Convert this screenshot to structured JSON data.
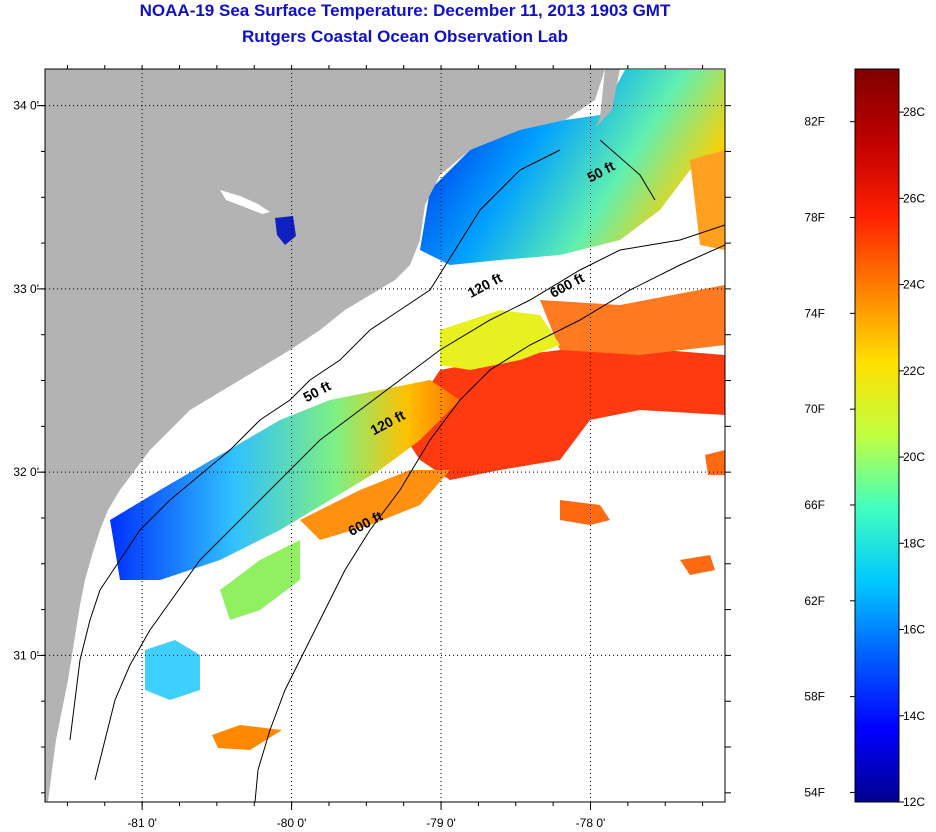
{
  "title": {
    "line1": "NOAA-19 Sea Surface Temperature:  December 11, 2013 1903 GMT",
    "line2": "Rutgers Coastal Ocean Observation Lab"
  },
  "map": {
    "lon_range": [
      -81.65,
      -77.1
    ],
    "lat_range": [
      30.2,
      34.2
    ],
    "lon_ticks": [
      {
        "value": -81,
        "label": "-81 0'"
      },
      {
        "value": -80,
        "label": "-80 0'"
      },
      {
        "value": -79,
        "label": "-79 0'"
      },
      {
        "value": -78,
        "label": "-78 0'"
      }
    ],
    "lat_ticks": [
      {
        "value": 34,
        "label": "34 0'"
      },
      {
        "value": 33,
        "label": "33 0'"
      },
      {
        "value": 32,
        "label": "32 0'"
      },
      {
        "value": 31,
        "label": "31 0'"
      }
    ],
    "contour_labels": [
      {
        "text": "50 ft",
        "lon": -78.0,
        "lat": 33.58
      },
      {
        "text": "120 ft",
        "lon": -78.8,
        "lat": 32.95
      },
      {
        "text": "600 ft",
        "lon": -78.25,
        "lat": 32.95
      },
      {
        "text": "50 ft",
        "lon": -79.9,
        "lat": 32.38
      },
      {
        "text": "120 ft",
        "lon": -79.45,
        "lat": 32.2
      },
      {
        "text": "600 ft",
        "lon": -79.6,
        "lat": 31.65
      }
    ],
    "colors": {
      "land": "#b3b3b3",
      "ocean_no_data": "#ffffff",
      "frame": "#000000"
    }
  },
  "colorbar": {
    "temp_min_c": 12,
    "temp_max_c": 29,
    "celsius_ticks": [
      {
        "value": 12,
        "label": "12C"
      },
      {
        "value": 14,
        "label": "14C"
      },
      {
        "value": 16,
        "label": "16C"
      },
      {
        "value": 18,
        "label": "18C"
      },
      {
        "value": 20,
        "label": "20C"
      },
      {
        "value": 22,
        "label": "22C"
      },
      {
        "value": 24,
        "label": "24C"
      },
      {
        "value": 26,
        "label": "26C"
      },
      {
        "value": 28,
        "label": "28C"
      }
    ],
    "fahrenheit_ticks": [
      {
        "value": 54,
        "label": "54F"
      },
      {
        "value": 58,
        "label": "58F"
      },
      {
        "value": 62,
        "label": "62F"
      },
      {
        "value": 66,
        "label": "66F"
      },
      {
        "value": 70,
        "label": "70F"
      },
      {
        "value": 74,
        "label": "74F"
      },
      {
        "value": 78,
        "label": "78F"
      },
      {
        "value": 82,
        "label": "82F"
      }
    ],
    "gradient_stops": [
      "#00008f",
      "#0000ff",
      "#0060ff",
      "#00c8ff",
      "#40ffc0",
      "#c0ff40",
      "#ffe000",
      "#ff8000",
      "#ff2000",
      "#c00000",
      "#800000"
    ]
  }
}
